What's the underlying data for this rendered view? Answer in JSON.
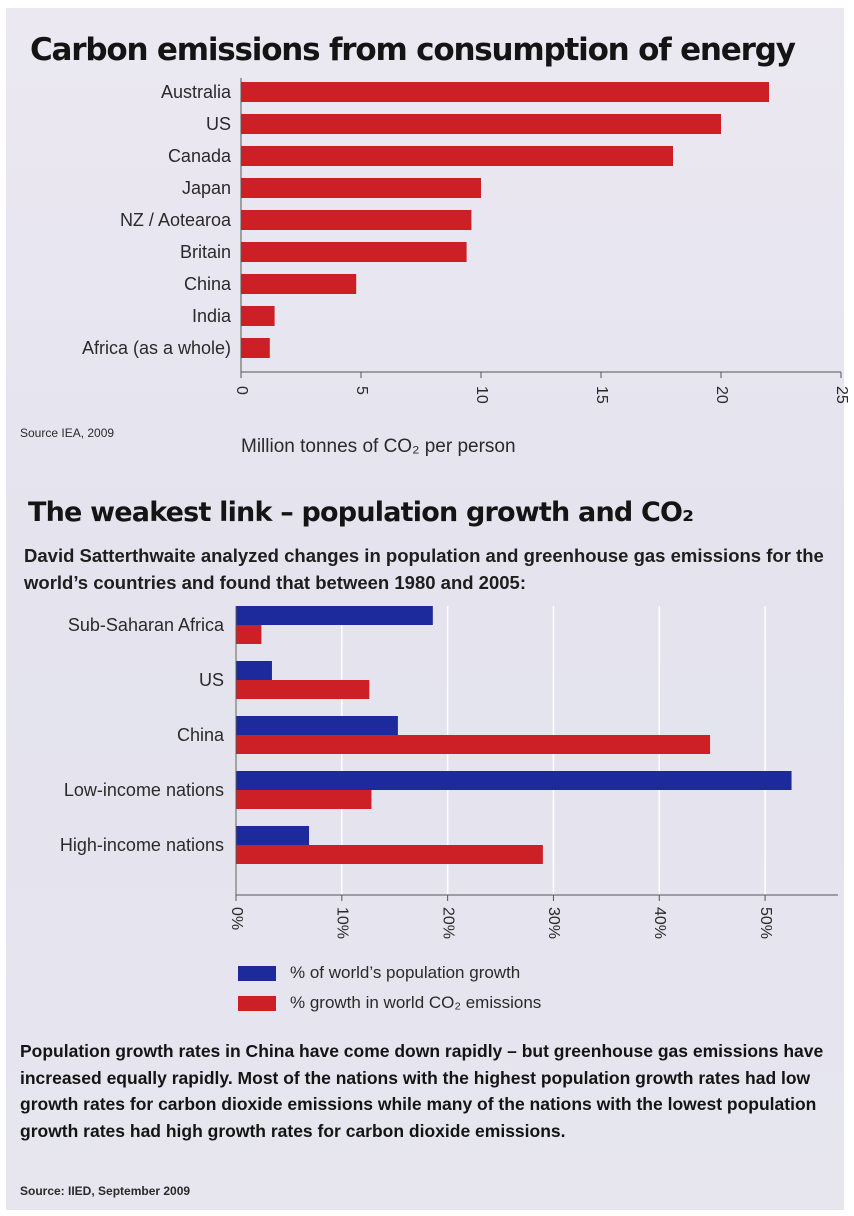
{
  "chart_data": [
    {
      "type": "bar",
      "orientation": "horizontal",
      "title": "Carbon emissions from consumption of energy",
      "categories": [
        "Australia",
        "US",
        "Canada",
        "Japan",
        "NZ / Aotearoa",
        "Britain",
        "China",
        "India",
        "Africa (as a whole)"
      ],
      "values": [
        22,
        20,
        18,
        10,
        9.6,
        9.4,
        4.8,
        1.4,
        1.2
      ],
      "xlabel": "Million tonnes of CO₂ per person",
      "xlim": [
        0,
        25
      ],
      "xticks": [
        "0",
        "5",
        "10",
        "15",
        "20",
        "25"
      ],
      "grid": false,
      "color": "#cc1f26",
      "source": "Source IEA, 2009"
    },
    {
      "type": "bar",
      "orientation": "horizontal",
      "title": "The weakest link – population growth and CO₂",
      "subtitle": "David Satterthwaite analyzed changes in population and greenhouse gas emissions for the world’s countries and found that between 1980 and 2005:",
      "categories": [
        "Sub-Saharan Africa",
        "US",
        "China",
        "Low-income nations",
        "High-income nations"
      ],
      "series": [
        {
          "name": "% of world’s population growth",
          "values": [
            18.6,
            3.4,
            15.3,
            52.5,
            6.9
          ],
          "color": "#1c2a9c"
        },
        {
          "name": "% growth in world CO₂ emissions",
          "values": [
            2.4,
            12.6,
            44.8,
            12.8,
            29.0
          ],
          "color": "#cc1f26"
        }
      ],
      "xlim": [
        0,
        55
      ],
      "xticks": [
        "0%",
        "10%",
        "20%",
        "30%",
        "40%",
        "50%"
      ],
      "grid": true,
      "legend": "bottom",
      "note": "Population growth rates in China have come down rapidly – but greenhouse gas emissions have increased equally rapidly. Most of the nations with the highest population growth rates had low growth rates for carbon dioxide emissions while many of the nations with the lowest population growth rates had high growth rates for carbon dioxide emissions.",
      "source": "Source: IIED, September 2009"
    }
  ]
}
